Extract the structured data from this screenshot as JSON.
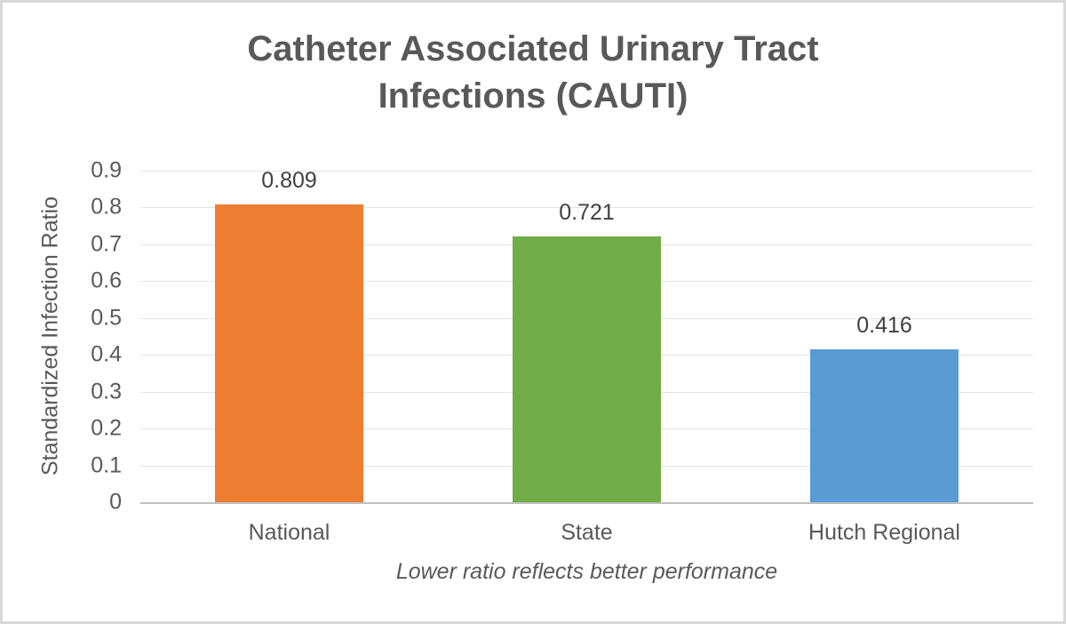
{
  "chart_data": {
    "type": "bar",
    "title": "Catheter Associated Urinary Tract Infections (CAUTI)",
    "ylabel": "Standardized Infection Ratio",
    "note": "Lower ratio reflects better performance",
    "categories": [
      "National",
      "State",
      "Hutch Regional"
    ],
    "values": [
      0.809,
      0.721,
      0.416
    ],
    "value_labels": [
      "0.809",
      "0.721",
      "0.416"
    ],
    "bar_colors": [
      "#ED7D31",
      "#70AD47",
      "#5B9BD5"
    ],
    "yticks": [
      "0.9",
      "0.8",
      "0.7",
      "0.6",
      "0.5",
      "0.4",
      "0.3",
      "0.2",
      "0.1",
      "0"
    ],
    "ylim": [
      0,
      0.9
    ],
    "grid": "horizontal",
    "legend": "none",
    "colors": {
      "title_text": "#595959",
      "axis_text": "#595959",
      "data_label_text": "#404040",
      "gridline": "#E4E4E4",
      "axis_line": "#BFBFBF",
      "frame_border": "#D9D9D9",
      "background": "#FFFFFF"
    }
  }
}
